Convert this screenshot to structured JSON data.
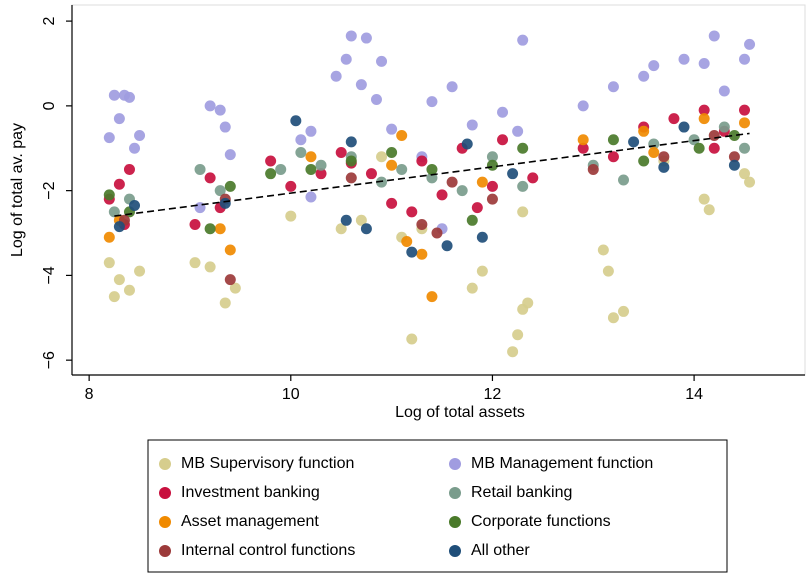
{
  "chart_data": {
    "type": "scatter",
    "xlabel": "Log of total assets",
    "ylabel": "Log of total av. pay",
    "xlim": [
      7.83,
      15.1
    ],
    "ylim": [
      -6.35,
      2.38
    ],
    "xticks": [
      8,
      10,
      12,
      14
    ],
    "yticks": [
      {
        "value": -6,
        "label": "−6"
      },
      {
        "value": -4,
        "label": "−4"
      },
      {
        "value": -2,
        "label": "−2"
      },
      0,
      2
    ],
    "grid": false,
    "fit": {
      "x": [
        8.25,
        14.55
      ],
      "y": [
        -2.6,
        -0.65
      ]
    },
    "series": [
      {
        "name": "MB Supervisory function",
        "color": "#d6cd8d",
        "x": [
          8.2,
          8.25,
          8.3,
          8.4,
          8.5,
          9.05,
          9.2,
          9.35,
          9.45,
          10.0,
          10.5,
          10.7,
          10.9,
          11.1,
          11.3,
          11.2,
          11.8,
          11.9,
          12.2,
          12.25,
          12.3,
          12.35,
          12.3,
          13.1,
          13.15,
          13.2,
          13.3,
          13.7,
          14.1,
          14.15,
          14.5,
          14.55
        ],
        "y": [
          -3.7,
          -4.5,
          -4.1,
          -4.35,
          -3.9,
          -3.7,
          -3.8,
          -4.65,
          -4.3,
          -2.6,
          -2.9,
          -2.7,
          -1.2,
          -3.1,
          -2.9,
          -5.5,
          -4.3,
          -3.9,
          -5.8,
          -5.4,
          -4.8,
          -4.65,
          -2.5,
          -3.4,
          -3.9,
          -5.0,
          -4.85,
          -1.3,
          -2.2,
          -2.45,
          -1.6,
          -1.8
        ]
      },
      {
        "name": "MB Management function",
        "color": "#a09ce0",
        "x": [
          8.25,
          8.35,
          8.4,
          8.3,
          8.2,
          8.45,
          8.5,
          9.2,
          9.3,
          9.35,
          9.4,
          9.1,
          10.1,
          10.2,
          10.45,
          10.55,
          10.6,
          10.75,
          10.7,
          10.85,
          10.9,
          11.0,
          11.3,
          11.4,
          11.6,
          11.8,
          12.1,
          12.3,
          12.25,
          12.9,
          13.2,
          13.5,
          13.6,
          13.9,
          14.1,
          14.2,
          14.5,
          14.55,
          14.3,
          11.5,
          10.2
        ],
        "y": [
          0.25,
          0.25,
          0.2,
          -0.3,
          -0.75,
          -1.0,
          -0.7,
          0.0,
          -0.1,
          -0.5,
          -1.15,
          -2.4,
          -0.8,
          -0.6,
          0.7,
          1.1,
          1.65,
          1.6,
          0.5,
          0.15,
          1.05,
          -0.55,
          -1.2,
          0.1,
          0.45,
          -0.45,
          -0.15,
          1.55,
          -0.6,
          0.0,
          0.45,
          0.7,
          0.95,
          1.1,
          1.0,
          1.65,
          1.1,
          1.45,
          0.35,
          -2.9,
          -2.15
        ]
      },
      {
        "name": "Investment banking",
        "color": "#c8103e",
        "x": [
          8.2,
          8.3,
          8.4,
          8.35,
          9.05,
          9.2,
          9.3,
          9.8,
          10.0,
          10.3,
          10.5,
          10.6,
          10.8,
          11.0,
          11.2,
          11.3,
          11.5,
          11.7,
          11.85,
          12.0,
          12.1,
          12.4,
          12.9,
          13.2,
          13.5,
          13.8,
          14.1,
          14.3,
          14.5,
          14.2
        ],
        "y": [
          -2.2,
          -1.85,
          -1.5,
          -2.8,
          -2.8,
          -1.7,
          -2.4,
          -1.3,
          -1.9,
          -1.6,
          -1.1,
          -1.35,
          -1.6,
          -2.3,
          -2.5,
          -1.3,
          -2.1,
          -1.0,
          -2.4,
          -1.9,
          -0.8,
          -1.7,
          -1.0,
          -1.2,
          -0.5,
          -0.3,
          -0.1,
          -0.6,
          -0.1,
          -1.0
        ]
      },
      {
        "name": "Retail banking",
        "color": "#7a9c8c",
        "x": [
          8.25,
          8.4,
          9.1,
          9.3,
          9.9,
          10.1,
          10.3,
          10.6,
          10.9,
          11.1,
          11.4,
          11.7,
          12.0,
          12.3,
          13.0,
          13.3,
          13.6,
          14.0,
          14.3,
          14.5
        ],
        "y": [
          -2.5,
          -2.2,
          -1.5,
          -2.0,
          -1.5,
          -1.1,
          -1.4,
          -1.2,
          -1.8,
          -1.5,
          -1.7,
          -2.0,
          -1.2,
          -1.9,
          -1.4,
          -1.75,
          -0.9,
          -0.8,
          -0.5,
          -1.0
        ]
      },
      {
        "name": "Asset management",
        "color": "#f08a00",
        "x": [
          8.2,
          8.3,
          9.3,
          9.4,
          10.2,
          11.0,
          11.15,
          11.3,
          11.4,
          11.1,
          11.9,
          12.9,
          13.5,
          13.6,
          14.1,
          14.5
        ],
        "y": [
          -3.1,
          -2.7,
          -2.9,
          -3.4,
          -1.2,
          -1.4,
          -3.2,
          -3.5,
          -4.5,
          -0.7,
          -1.8,
          -0.8,
          -0.6,
          -1.1,
          -0.3,
          -0.4
        ]
      },
      {
        "name": "Corporate functions",
        "color": "#4a7a2a",
        "x": [
          8.2,
          8.4,
          9.2,
          9.4,
          9.8,
          10.2,
          10.6,
          11.0,
          11.4,
          11.8,
          12.0,
          12.3,
          13.2,
          13.5,
          14.05,
          14.4
        ],
        "y": [
          -2.1,
          -2.5,
          -2.9,
          -1.9,
          -1.6,
          -1.5,
          -1.3,
          -1.1,
          -1.5,
          -2.7,
          -1.4,
          -1.0,
          -0.8,
          -1.3,
          -1.0,
          -0.7
        ]
      },
      {
        "name": "Internal control functions",
        "color": "#9c3a3a",
        "x": [
          8.35,
          9.4,
          9.35,
          10.6,
          11.3,
          11.45,
          11.6,
          12.0,
          13.0,
          13.7,
          14.2,
          14.4
        ],
        "y": [
          -2.7,
          -4.1,
          -2.2,
          -1.7,
          -2.8,
          -3.0,
          -1.8,
          -2.2,
          -1.5,
          -1.2,
          -0.7,
          -1.2
        ]
      },
      {
        "name": "All other",
        "color": "#1f4e79",
        "x": [
          8.3,
          8.45,
          9.35,
          10.05,
          10.6,
          10.55,
          10.75,
          11.2,
          11.55,
          11.75,
          11.9,
          12.2,
          13.4,
          13.7,
          13.9,
          14.4
        ],
        "y": [
          -2.85,
          -2.35,
          -2.3,
          -0.35,
          -0.85,
          -2.7,
          -2.9,
          -3.45,
          -3.3,
          -0.9,
          -3.1,
          -1.6,
          -0.85,
          -1.45,
          -0.5,
          -1.4
        ]
      }
    ]
  }
}
